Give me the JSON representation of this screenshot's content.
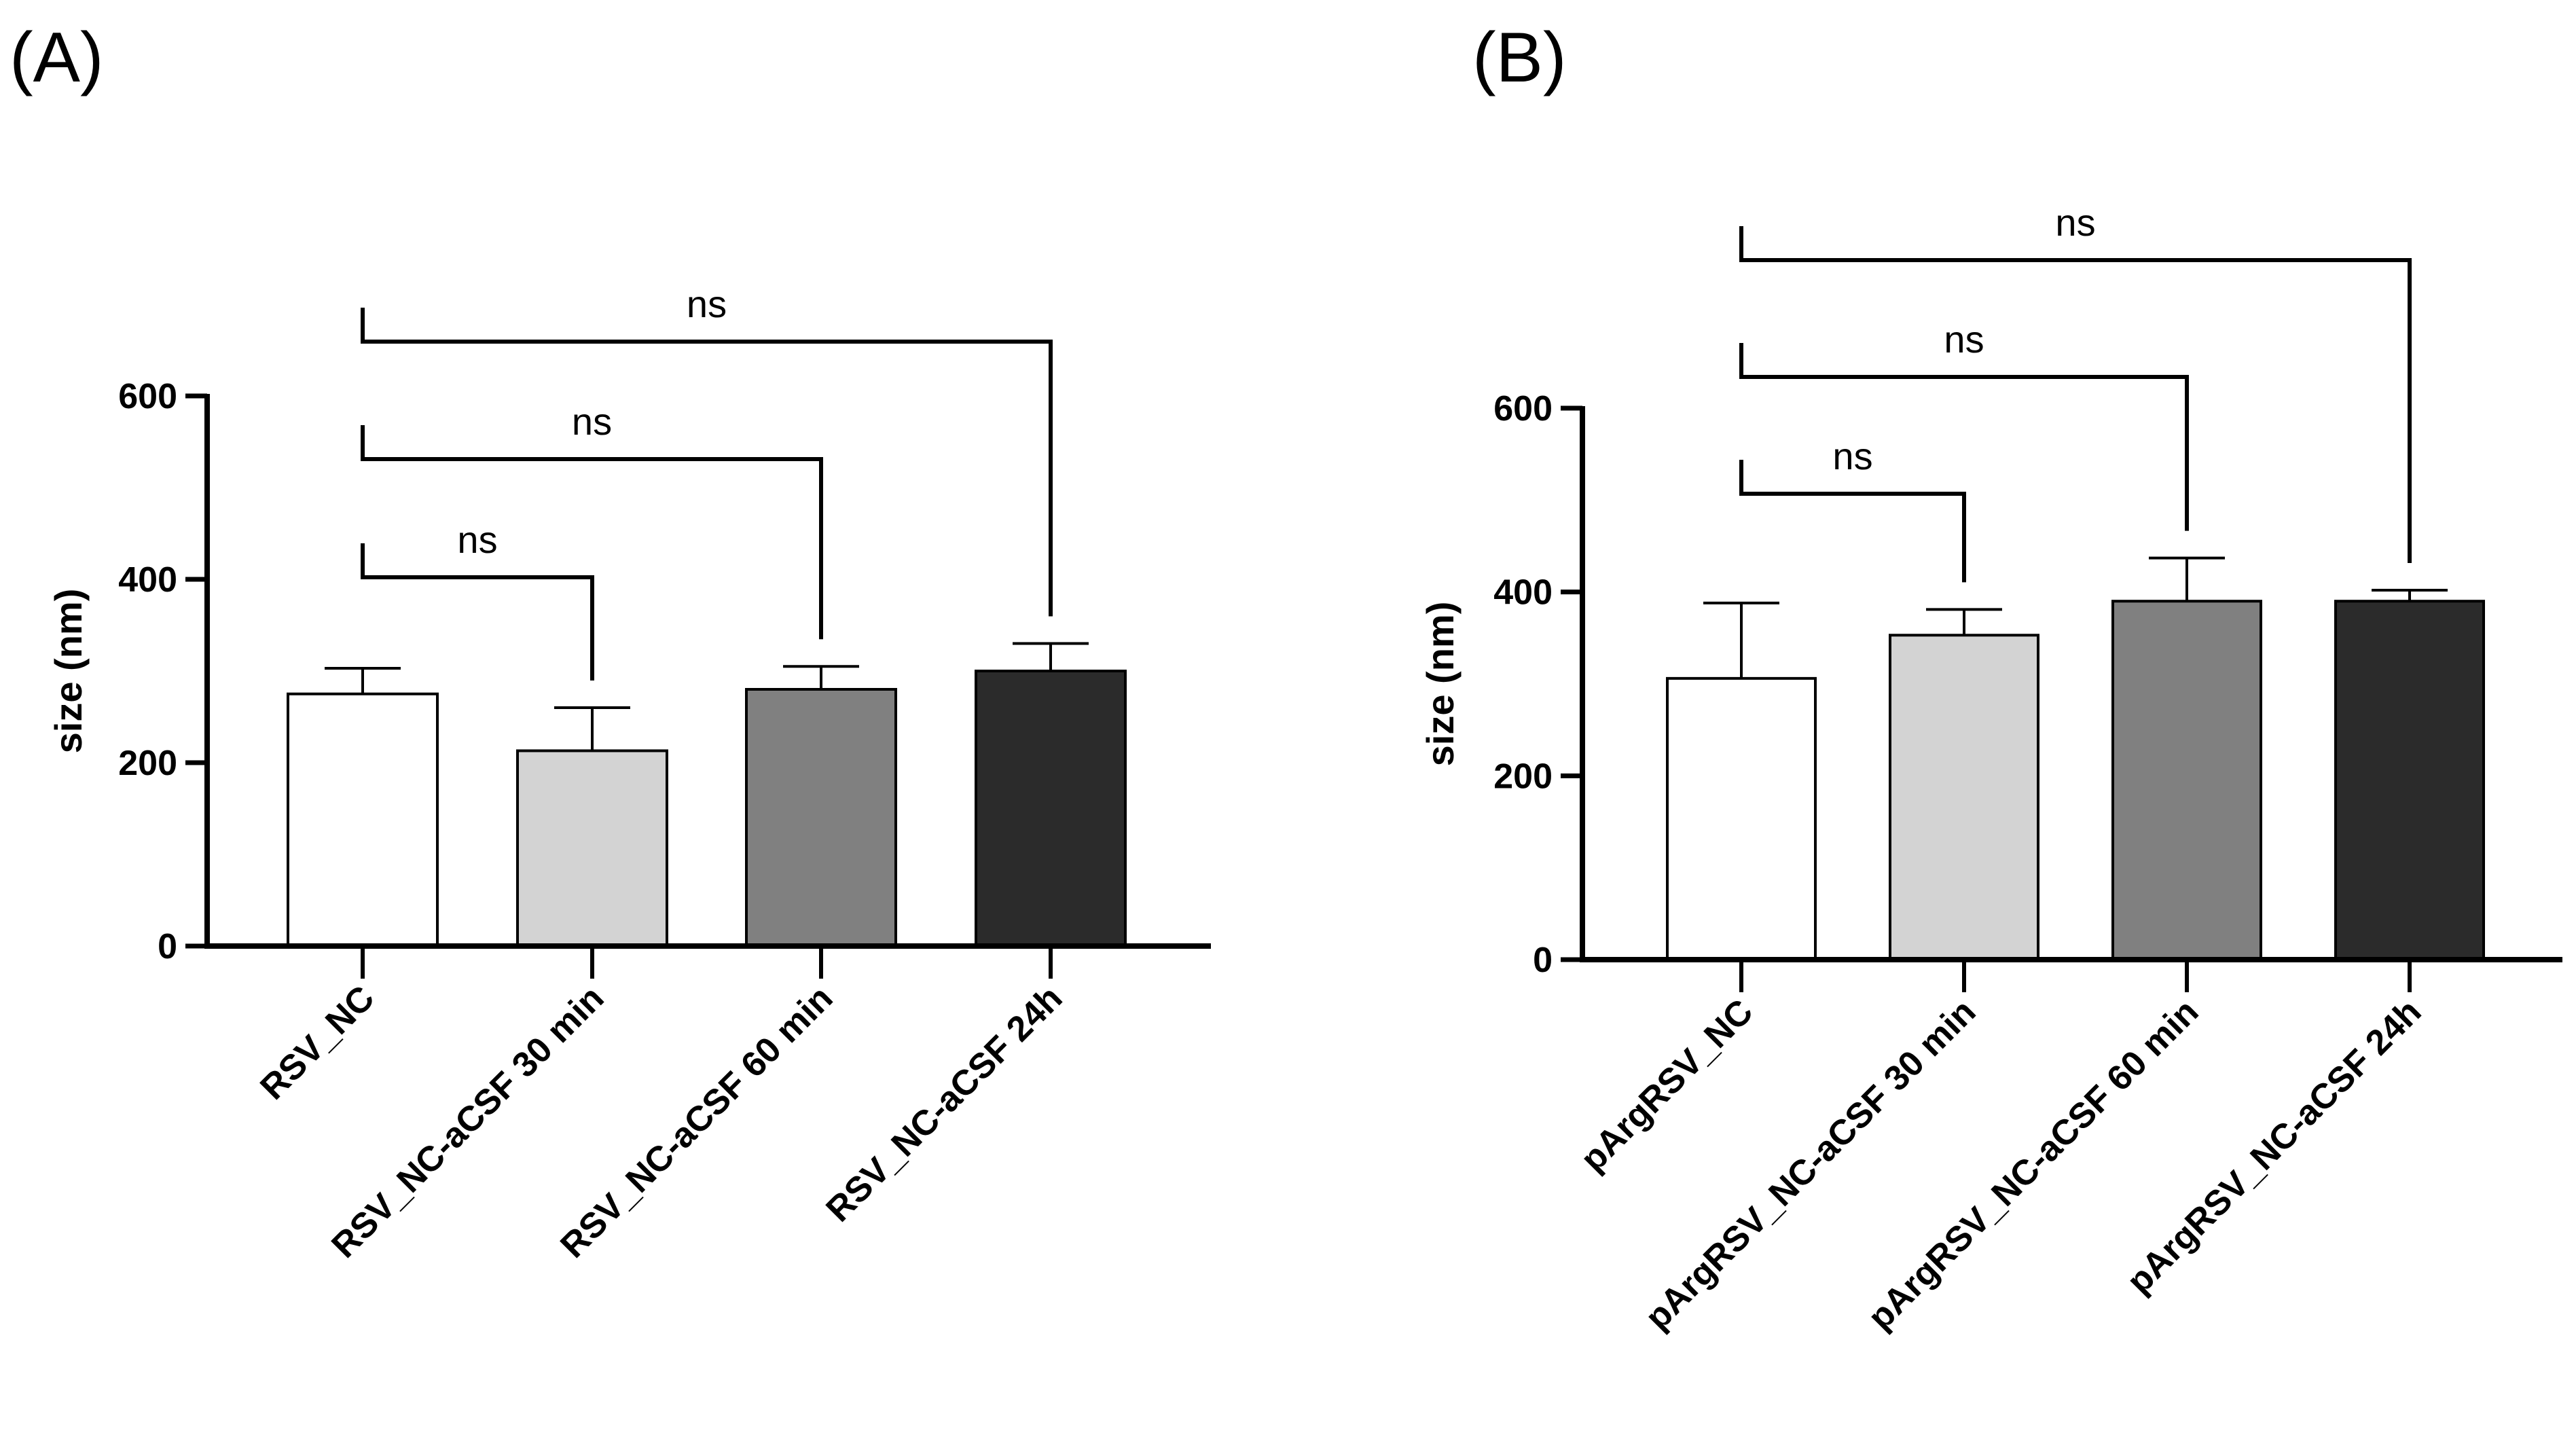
{
  "figure": {
    "colors": {
      "axis": "#000000",
      "bar_outline": "#000000",
      "background": "#ffffff"
    }
  },
  "chart_data": [
    {
      "panel": "(A)",
      "type": "bar",
      "title": "",
      "xlabel": "",
      "ylabel": "size (nm)",
      "ylim": [
        0,
        600
      ],
      "yticks": [
        0,
        200,
        400,
        600
      ],
      "ytick_labels": [
        "0",
        "200",
        "400",
        "600"
      ],
      "grid": false,
      "categories": [
        "RSV_NC",
        "RSV_NC-aCSF 30 min",
        "RSV_NC-aCSF 60 min",
        "RSV_NC-aCSF 24h"
      ],
      "values": [
        275,
        213,
        280,
        300
      ],
      "errors": [
        28,
        47,
        25,
        30
      ],
      "bar_colors": [
        "#ffffff",
        "#d3d3d3",
        "#808080",
        "#2b2b2b"
      ],
      "comparisons": [
        {
          "from": 0,
          "to": 1,
          "label": "ns"
        },
        {
          "from": 0,
          "to": 2,
          "label": "ns"
        },
        {
          "from": 0,
          "to": 3,
          "label": "ns"
        }
      ]
    },
    {
      "panel": "(B)",
      "type": "bar",
      "title": "",
      "xlabel": "",
      "ylabel": "size (nm)",
      "ylim": [
        0,
        600
      ],
      "yticks": [
        0,
        200,
        400,
        600
      ],
      "ytick_labels": [
        "0",
        "200",
        "400",
        "600"
      ],
      "grid": false,
      "categories": [
        "pArgRSV_NC",
        "pArgRSV_NC-aCSF 30 min",
        "pArgRSV_NC-aCSF 60 min",
        "pArgRSV_NC-aCSF 24h"
      ],
      "values": [
        306,
        353,
        390,
        390
      ],
      "errors": [
        82,
        28,
        47,
        12
      ],
      "bar_colors": [
        "#ffffff",
        "#d3d3d3",
        "#808080",
        "#2b2b2b"
      ],
      "comparisons": [
        {
          "from": 0,
          "to": 1,
          "label": "ns"
        },
        {
          "from": 0,
          "to": 2,
          "label": "ns"
        },
        {
          "from": 0,
          "to": 3,
          "label": "ns"
        }
      ]
    }
  ]
}
